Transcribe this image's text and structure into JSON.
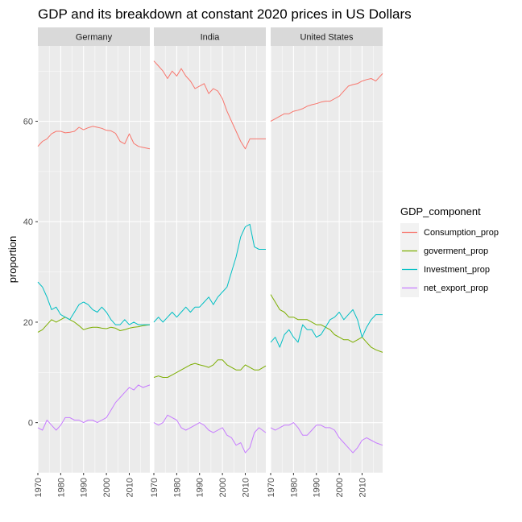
{
  "chart_data": {
    "type": "line",
    "title": "GDP and its breakdown at constant 2020 prices in US Dollars",
    "xlabel": "",
    "ylabel": "proportion",
    "ylim": [
      -10,
      75
    ],
    "xlim": [
      1970,
      2019
    ],
    "y_ticks": [
      0,
      20,
      40,
      60
    ],
    "x_ticks": [
      1970,
      1980,
      1990,
      2000,
      2010
    ],
    "grid": true,
    "legend": {
      "title": "GDP_component",
      "placement": "right",
      "entries": [
        "Consumption_prop",
        "goverment_prop",
        "Investment_prop",
        "net_export_prop"
      ]
    },
    "colors": {
      "Consumption_prop": "#F8766D",
      "goverment_prop": "#7CAE00",
      "Investment_prop": "#00BFC4",
      "net_export_prop": "#C77CFF"
    },
    "facets": [
      {
        "name": "Germany",
        "series": [
          {
            "name": "Consumption_prop",
            "x": [
              1970,
              1972,
              1974,
              1976,
              1978,
              1980,
              1982,
              1984,
              1986,
              1988,
              1990,
              1992,
              1994,
              1996,
              1998,
              2000,
              2002,
              2004,
              2006,
              2008,
              2010,
              2012,
              2014,
              2016,
              2019
            ],
            "y": [
              55,
              56,
              56.5,
              57.5,
              58,
              58,
              57.7,
              57.8,
              58,
              58.8,
              58.3,
              58.7,
              59,
              58.8,
              58.6,
              58.2,
              58.1,
              57.6,
              56,
              55.5,
              57.5,
              55.6,
              55,
              54.8,
              54.5
            ]
          },
          {
            "name": "goverment_prop",
            "x": [
              1970,
              1972,
              1974,
              1976,
              1978,
              1980,
              1982,
              1984,
              1986,
              1988,
              1990,
              1992,
              1994,
              1996,
              1998,
              2000,
              2002,
              2004,
              2006,
              2008,
              2010,
              2012,
              2014,
              2016,
              2019
            ],
            "y": [
              18,
              18.5,
              19.5,
              20.5,
              20,
              20.5,
              21,
              20.5,
              20,
              19.3,
              18.5,
              18.8,
              19,
              19,
              18.8,
              18.7,
              19,
              18.8,
              18.3,
              18.5,
              18.8,
              19,
              19.1,
              19.3,
              19.5
            ]
          },
          {
            "name": "Investment_prop",
            "x": [
              1970,
              1972,
              1974,
              1976,
              1978,
              1980,
              1982,
              1984,
              1986,
              1988,
              1990,
              1992,
              1994,
              1996,
              1998,
              2000,
              2002,
              2004,
              2006,
              2008,
              2010,
              2012,
              2014,
              2016,
              2019
            ],
            "y": [
              28,
              27,
              25,
              22.5,
              23,
              21.5,
              21,
              20.5,
              22,
              23.5,
              24,
              23.5,
              22.5,
              22,
              23,
              22,
              20.5,
              19.5,
              19.5,
              20.5,
              19.5,
              20,
              19.5,
              19.5,
              19.5
            ]
          },
          {
            "name": "net_export_prop",
            "x": [
              1970,
              1972,
              1974,
              1976,
              1978,
              1980,
              1982,
              1984,
              1986,
              1988,
              1990,
              1992,
              1994,
              1996,
              1998,
              2000,
              2002,
              2004,
              2006,
              2008,
              2010,
              2012,
              2014,
              2016,
              2019
            ],
            "y": [
              -1,
              -1.5,
              0.5,
              -0.5,
              -1.5,
              -0.5,
              1,
              1,
              0.5,
              0.5,
              0,
              0.5,
              0.5,
              0,
              0.5,
              1,
              2.5,
              4,
              5,
              6,
              7,
              6.5,
              7.5,
              7,
              7.5
            ]
          }
        ]
      },
      {
        "name": "India",
        "series": [
          {
            "name": "Consumption_prop",
            "x": [
              1970,
              1972,
              1974,
              1976,
              1978,
              1980,
              1982,
              1984,
              1986,
              1988,
              1990,
              1992,
              1994,
              1996,
              1998,
              2000,
              2002,
              2004,
              2006,
              2008,
              2010,
              2012,
              2014,
              2016,
              2019
            ],
            "y": [
              72,
              71,
              70,
              68.5,
              70,
              69,
              70.5,
              69,
              68,
              66.5,
              67,
              67.5,
              65.5,
              66.5,
              66,
              64.5,
              62,
              60,
              58,
              56,
              54.5,
              56.5,
              56.5,
              56.5,
              56.5
            ]
          },
          {
            "name": "goverment_prop",
            "x": [
              1970,
              1972,
              1974,
              1976,
              1978,
              1980,
              1982,
              1984,
              1986,
              1988,
              1990,
              1992,
              1994,
              1996,
              1998,
              2000,
              2002,
              2004,
              2006,
              2008,
              2010,
              2012,
              2014,
              2016,
              2019
            ],
            "y": [
              9,
              9.3,
              9,
              9,
              9.5,
              10,
              10.5,
              11,
              11.5,
              11.8,
              11.5,
              11.3,
              11,
              11.5,
              12.5,
              12.5,
              11.5,
              11,
              10.5,
              10.5,
              11.5,
              11,
              10.5,
              10.5,
              11.3
            ]
          },
          {
            "name": "Investment_prop",
            "x": [
              1970,
              1972,
              1974,
              1976,
              1978,
              1980,
              1982,
              1984,
              1986,
              1988,
              1990,
              1992,
              1994,
              1996,
              1998,
              2000,
              2002,
              2004,
              2006,
              2008,
              2010,
              2012,
              2014,
              2016,
              2019
            ],
            "y": [
              20,
              21,
              20,
              21,
              22,
              21,
              22,
              23,
              22,
              23,
              23,
              24,
              25,
              23.5,
              25,
              26,
              27,
              30,
              33,
              37,
              39,
              39.5,
              35,
              34.5,
              34.5
            ]
          },
          {
            "name": "net_export_prop",
            "x": [
              1970,
              1972,
              1974,
              1976,
              1978,
              1980,
              1982,
              1984,
              1986,
              1988,
              1990,
              1992,
              1994,
              1996,
              1998,
              2000,
              2002,
              2004,
              2006,
              2008,
              2010,
              2012,
              2014,
              2016,
              2019
            ],
            "y": [
              0,
              -0.5,
              0,
              1.5,
              1,
              0.5,
              -1,
              -1.5,
              -1,
              -0.5,
              0,
              -0.5,
              -1.5,
              -2,
              -1.5,
              -1,
              -2.5,
              -3,
              -4.5,
              -4,
              -6,
              -5,
              -2,
              -1,
              -2
            ]
          }
        ]
      },
      {
        "name": "United States",
        "series": [
          {
            "name": "Consumption_prop",
            "x": [
              1970,
              1972,
              1974,
              1976,
              1978,
              1980,
              1982,
              1984,
              1986,
              1988,
              1990,
              1992,
              1994,
              1996,
              1998,
              2000,
              2002,
              2004,
              2006,
              2008,
              2010,
              2012,
              2014,
              2016,
              2019
            ],
            "y": [
              60,
              60.5,
              61,
              61.5,
              61.5,
              62,
              62.2,
              62.5,
              63,
              63.3,
              63.5,
              63.8,
              64,
              64,
              64.5,
              65,
              66,
              67,
              67.3,
              67.5,
              68,
              68.3,
              68.5,
              68,
              69.5
            ]
          },
          {
            "name": "goverment_prop",
            "x": [
              1970,
              1972,
              1974,
              1976,
              1978,
              1980,
              1982,
              1984,
              1986,
              1988,
              1990,
              1992,
              1994,
              1996,
              1998,
              2000,
              2002,
              2004,
              2006,
              2008,
              2010,
              2012,
              2014,
              2016,
              2019
            ],
            "y": [
              25.5,
              24,
              22.5,
              22,
              21,
              21,
              20.5,
              20.5,
              20.5,
              20,
              19.5,
              19.5,
              19,
              18.5,
              17.5,
              17,
              16.5,
              16.5,
              16,
              16.5,
              17,
              16,
              15,
              14.5,
              14
            ]
          },
          {
            "name": "Investment_prop",
            "x": [
              1970,
              1972,
              1974,
              1976,
              1978,
              1980,
              1982,
              1984,
              1986,
              1988,
              1990,
              1992,
              1994,
              1996,
              1998,
              2000,
              2002,
              2004,
              2006,
              2008,
              2010,
              2012,
              2014,
              2016,
              2019
            ],
            "y": [
              16,
              17,
              15,
              17.5,
              18.5,
              17,
              16,
              19.5,
              18.5,
              18.5,
              17,
              17.5,
              19,
              20.5,
              21,
              22,
              20.5,
              21.5,
              22.5,
              20.5,
              17,
              19,
              20.5,
              21.5,
              21.5
            ]
          },
          {
            "name": "net_export_prop",
            "x": [
              1970,
              1972,
              1974,
              1976,
              1978,
              1980,
              1982,
              1984,
              1986,
              1988,
              1990,
              1992,
              1994,
              1996,
              1998,
              2000,
              2002,
              2004,
              2006,
              2008,
              2010,
              2012,
              2014,
              2016,
              2019
            ],
            "y": [
              -1,
              -1.5,
              -1,
              -0.5,
              -0.5,
              0,
              -1,
              -2.5,
              -2.5,
              -1.5,
              -0.5,
              -0.5,
              -1,
              -1,
              -1.5,
              -3,
              -4,
              -5,
              -6,
              -5,
              -3.5,
              -3,
              -3.5,
              -4,
              -4.5
            ]
          }
        ]
      }
    ]
  }
}
